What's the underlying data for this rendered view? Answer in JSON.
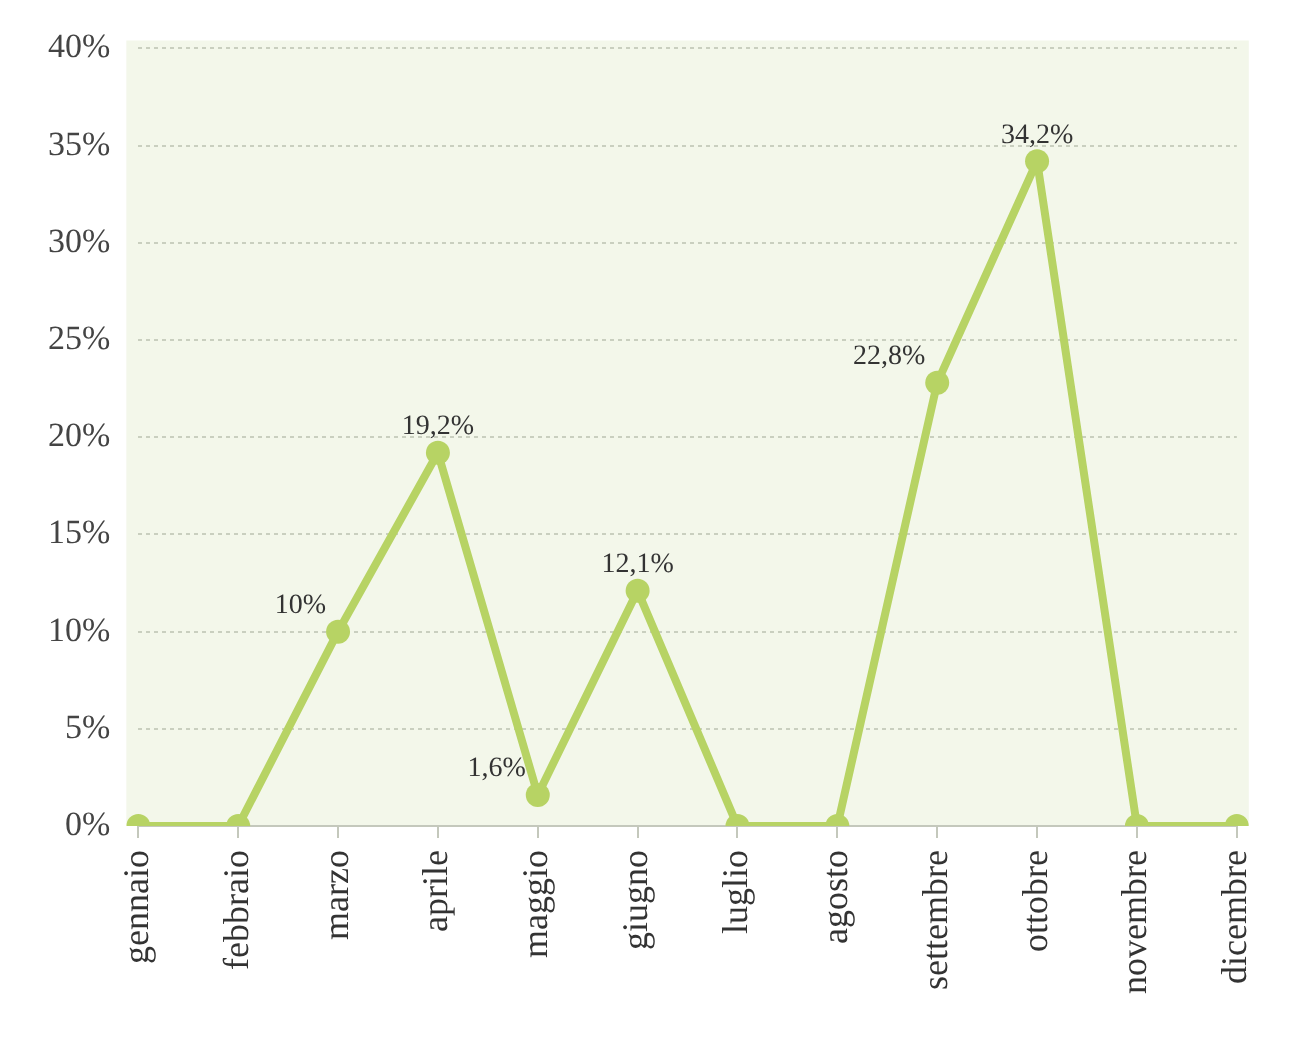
{
  "chart_data": {
    "type": "line",
    "categories": [
      "gennaio",
      "febbraio",
      "marzo",
      "aprile",
      "maggio",
      "giugno",
      "luglio",
      "agosto",
      "settembre",
      "ottobre",
      "novembre",
      "dicembre"
    ],
    "values": [
      0,
      0,
      10,
      19.2,
      1.6,
      12.1,
      0,
      0,
      22.8,
      34.2,
      0,
      0
    ],
    "value_labels": [
      null,
      null,
      "10%",
      "19,2%",
      "1,6%",
      "12,1%",
      null,
      null,
      "22,8%",
      "34,2%",
      null,
      null
    ],
    "color": "#b7d364",
    "ylim": [
      0,
      40
    ],
    "yticks": [
      {
        "value": 0,
        "label": "0%"
      },
      {
        "value": 5,
        "label": "5%"
      },
      {
        "value": 10,
        "label": "10%"
      },
      {
        "value": 15,
        "label": "15%"
      },
      {
        "value": 20,
        "label": "20%"
      },
      {
        "value": 25,
        "label": "25%"
      },
      {
        "value": 30,
        "label": "30%"
      },
      {
        "value": 35,
        "label": "35%"
      },
      {
        "value": 40,
        "label": "40%"
      }
    ],
    "grid": "y",
    "marker": "circle",
    "line_style": "solid"
  }
}
